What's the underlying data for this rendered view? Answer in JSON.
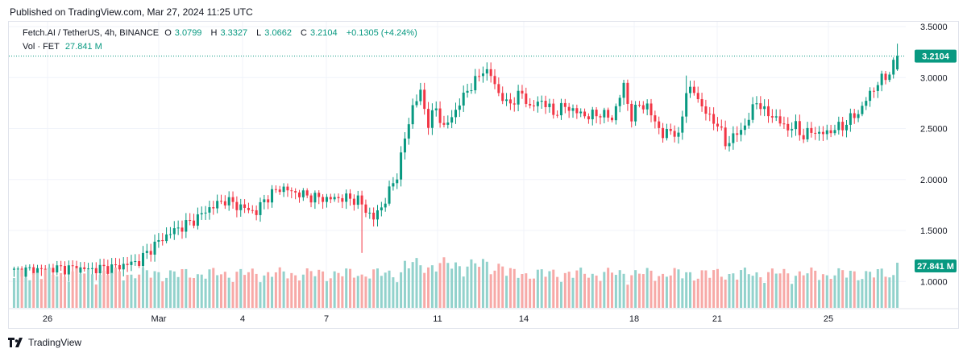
{
  "header": {
    "published": "Published on TradingView.com, Mar 27, 2024 11:25 UTC"
  },
  "legend": {
    "symbol": "Fetch.AI / TetherUS, 4h, BINANCE",
    "open_label": "O",
    "open": "3.0799",
    "high_label": "H",
    "high": "3.3327",
    "low_label": "L",
    "low": "3.0662",
    "close_label": "C",
    "close": "3.2104",
    "change": "+0.1305 (+4.24%)",
    "vol_label": "Vol · FET",
    "vol_value": "27.841 M"
  },
  "price_axis": {
    "labels": [
      "3.5000",
      "3.0000",
      "2.5000",
      "2.0000",
      "1.5000",
      "1.0000"
    ],
    "last_price": "3.2104",
    "last_volume": "27.841 M"
  },
  "time_axis": {
    "labels": [
      "26",
      "Mar",
      "4",
      "7",
      "11",
      "14",
      "18",
      "21",
      "25"
    ]
  },
  "colors": {
    "up": "#089981",
    "down": "#f23645",
    "vol_up": "#92d2cc",
    "vol_down": "#f7a9a7",
    "grid": "#f0f3fa"
  },
  "chart_data": {
    "type": "candlestick",
    "symbol": "FET/USDT",
    "interval": "4h",
    "exchange": "BINANCE",
    "ylim": [
      0.75,
      3.6
    ],
    "x_ticks": [
      "26",
      "Mar",
      "4",
      "7",
      "11",
      "14",
      "18",
      "21",
      "25"
    ],
    "anchors": [
      [
        0,
        1.1
      ],
      [
        12,
        1.13
      ],
      [
        20,
        1.12
      ],
      [
        26,
        1.14
      ],
      [
        32,
        1.2
      ],
      [
        36,
        1.36
      ],
      [
        40,
        1.48
      ],
      [
        46,
        1.6
      ],
      [
        50,
        1.72
      ],
      [
        54,
        1.8
      ],
      [
        58,
        1.73
      ],
      [
        62,
        1.68
      ],
      [
        64,
        1.8
      ],
      [
        68,
        1.92
      ],
      [
        72,
        1.87
      ],
      [
        76,
        1.83
      ],
      [
        80,
        1.81
      ],
      [
        84,
        1.82
      ],
      [
        88,
        1.8
      ],
      [
        90,
        1.7
      ],
      [
        92,
        1.62
      ],
      [
        94,
        1.73
      ],
      [
        96,
        1.88
      ],
      [
        98,
        2.05
      ],
      [
        100,
        2.4
      ],
      [
        102,
        2.72
      ],
      [
        104,
        2.85
      ],
      [
        106,
        2.55
      ],
      [
        108,
        2.7
      ],
      [
        110,
        2.5
      ],
      [
        113,
        2.68
      ],
      [
        116,
        2.88
      ],
      [
        118,
        2.96
      ],
      [
        120,
        3.08
      ],
      [
        122,
        3.02
      ],
      [
        124,
        2.85
      ],
      [
        126,
        2.74
      ],
      [
        128,
        2.78
      ],
      [
        130,
        2.85
      ],
      [
        132,
        2.7
      ],
      [
        135,
        2.78
      ],
      [
        138,
        2.65
      ],
      [
        141,
        2.72
      ],
      [
        144,
        2.66
      ],
      [
        147,
        2.62
      ],
      [
        150,
        2.65
      ],
      [
        153,
        2.6
      ],
      [
        156,
        2.92
      ],
      [
        158,
        2.6
      ],
      [
        160,
        2.75
      ],
      [
        162,
        2.7
      ],
      [
        164,
        2.58
      ],
      [
        166,
        2.42
      ],
      [
        168,
        2.5
      ],
      [
        170,
        2.4
      ],
      [
        172,
        2.88
      ],
      [
        174,
        2.86
      ],
      [
        176,
        2.72
      ],
      [
        178,
        2.6
      ],
      [
        180,
        2.55
      ],
      [
        182,
        2.35
      ],
      [
        184,
        2.42
      ],
      [
        186,
        2.48
      ],
      [
        188,
        2.6
      ],
      [
        190,
        2.78
      ],
      [
        192,
        2.66
      ],
      [
        194,
        2.63
      ],
      [
        196,
        2.56
      ],
      [
        198,
        2.5
      ],
      [
        200,
        2.52
      ],
      [
        202,
        2.42
      ],
      [
        204,
        2.48
      ],
      [
        206,
        2.45
      ],
      [
        208,
        2.46
      ],
      [
        210,
        2.5
      ],
      [
        212,
        2.52
      ],
      [
        214,
        2.6
      ],
      [
        216,
        2.65
      ],
      [
        218,
        2.78
      ],
      [
        220,
        2.9
      ],
      [
        222,
        2.98
      ],
      [
        224,
        3.05
      ],
      [
        226,
        3.21
      ]
    ],
    "last_candle": {
      "open": 3.0799,
      "high": 3.3327,
      "low": 3.0662,
      "close": 3.2104,
      "volume_m": 27.841
    }
  }
}
